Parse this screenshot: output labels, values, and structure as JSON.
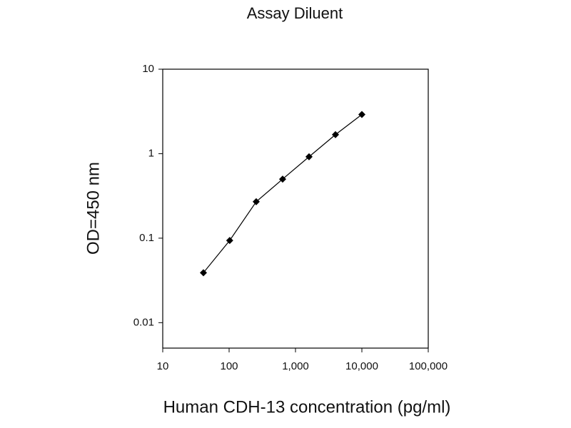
{
  "chart_data": {
    "type": "line",
    "title": "Assay Diluent",
    "x_label": "Human CDH-13 concentration (pg/ml)",
    "y_label": "OD=450 nm",
    "x": [
      41,
      102,
      256,
      640,
      1600,
      4000,
      10000
    ],
    "series": [
      {
        "color": "#000000",
        "values": [
          0.039,
          0.094,
          0.27,
          0.5,
          0.92,
          1.68,
          2.91
        ]
      }
    ],
    "x_log": true,
    "y_log": true,
    "xlim": [
      10,
      100000
    ],
    "xticks": [
      10,
      100,
      {
        "value": 1000,
        "label": "1,000"
      },
      {
        "value": 10000,
        "label": "10,000"
      },
      {
        "value": 100000,
        "label": "100,000"
      }
    ],
    "ylim": [
      0.005,
      10
    ],
    "yticks": [
      0.01,
      0.1,
      1,
      10
    ]
  }
}
